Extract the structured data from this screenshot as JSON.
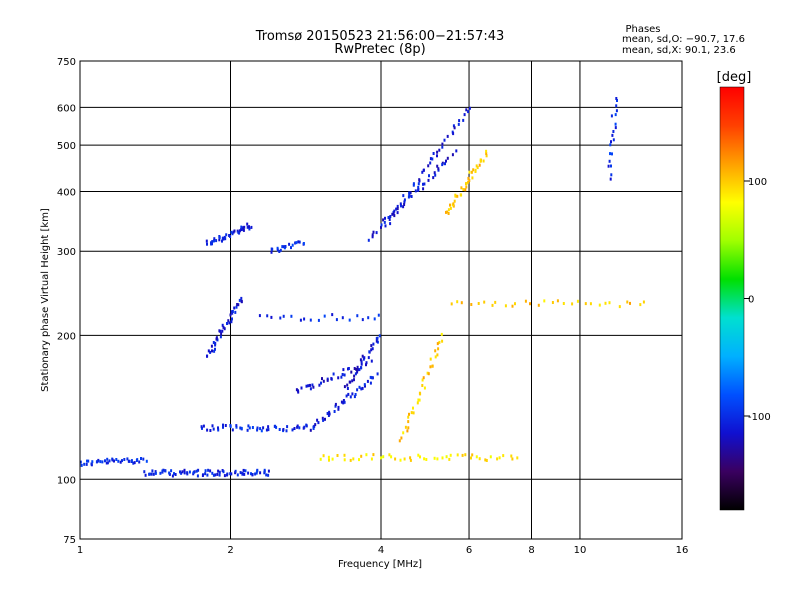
{
  "chart_data": {
    "type": "scatter",
    "title": "Tromsø 20150523 21:56:00−21:57:43",
    "subtitle": "RwPretec (8p)",
    "xlabel": "Frequency [MHz]",
    "ylabel": "Stationary phase Virtual Height [km]",
    "x_scale": "log",
    "y_scale": "log",
    "xlim": [
      1,
      16
    ],
    "ylim": [
      75,
      750
    ],
    "x_ticks": [
      1,
      2,
      4,
      6,
      8,
      10,
      16
    ],
    "y_ticks": [
      75,
      100,
      200,
      300,
      400,
      500,
      600,
      750
    ],
    "grid": true,
    "phases_box": {
      "heading": "Phases",
      "line_o": "mean, sd,O: −90.7, 17.6",
      "line_x": "mean, sd,X:  90.1, 23.6"
    },
    "colorbar": {
      "label": "[deg]",
      "range": [
        -180,
        180
      ],
      "ticks": [
        100,
        0,
        -100
      ],
      "colors": [
        "#000000",
        "#3a0060",
        "#1010d0",
        "#0050ff",
        "#00b0ff",
        "#00e0d0",
        "#00e000",
        "#a0ff00",
        "#ffff00",
        "#ffa000",
        "#ff4000",
        "#ff0000"
      ]
    },
    "series": [
      {
        "kind": "trace",
        "frequency_mhz": [
          1.0,
          1.35
        ],
        "height_km": [
          108,
          110
        ],
        "phase": -100,
        "density": 40
      },
      {
        "kind": "trace",
        "frequency_mhz": [
          1.35,
          2.4
        ],
        "height_km": [
          103,
          103
        ],
        "phase": -105,
        "density": 80
      },
      {
        "kind": "trace",
        "frequency_mhz": [
          1.75,
          2.9
        ],
        "height_km": [
          128,
          128
        ],
        "phase": -100,
        "density": 50
      },
      {
        "kind": "trace",
        "frequency_mhz": [
          2.9,
          3.9
        ],
        "height_km": [
          128,
          165
        ],
        "phase": -110,
        "density": 40
      },
      {
        "kind": "trace",
        "frequency_mhz": [
          2.7,
          3.8
        ],
        "height_km": [
          152,
          175
        ],
        "phase": -115,
        "density": 35
      },
      {
        "kind": "trace",
        "frequency_mhz": [
          3.4,
          4.0
        ],
        "height_km": [
          155,
          200
        ],
        "phase": -110,
        "density": 30
      },
      {
        "kind": "trace",
        "frequency_mhz": [
          1.8,
          2.1
        ],
        "height_km": [
          180,
          240
        ],
        "phase": -110,
        "density": 40
      },
      {
        "kind": "trace",
        "frequency_mhz": [
          1.8,
          2.2
        ],
        "height_km": [
          310,
          340
        ],
        "phase": -105,
        "density": 40
      },
      {
        "kind": "trace",
        "frequency_mhz": [
          2.4,
          2.8
        ],
        "height_km": [
          300,
          315
        ],
        "phase": -100,
        "density": 20
      },
      {
        "kind": "trace",
        "frequency_mhz": [
          3.8,
          5.6
        ],
        "height_km": [
          320,
          480
        ],
        "phase": -110,
        "density": 45
      },
      {
        "kind": "trace",
        "frequency_mhz": [
          4.1,
          6.0
        ],
        "height_km": [
          340,
          600
        ],
        "phase": -110,
        "density": 45
      },
      {
        "kind": "trace",
        "frequency_mhz": [
          5.4,
          6.5
        ],
        "height_km": [
          360,
          480
        ],
        "phase": 100,
        "density": 40
      },
      {
        "kind": "trace",
        "frequency_mhz": [
          4.4,
          5.3
        ],
        "height_km": [
          120,
          200
        ],
        "phase": 100,
        "density": 35
      },
      {
        "kind": "trace",
        "frequency_mhz": [
          3.0,
          7.5
        ],
        "height_km": [
          111,
          111
        ],
        "phase": 90,
        "density": 50
      },
      {
        "kind": "trace",
        "frequency_mhz": [
          2.3,
          4.0
        ],
        "height_km": [
          218,
          218
        ],
        "phase": -100,
        "density": 20
      },
      {
        "kind": "trace",
        "frequency_mhz": [
          5.5,
          13.5
        ],
        "height_km": [
          233,
          233
        ],
        "phase": 100,
        "density": 30
      },
      {
        "kind": "trace",
        "frequency_mhz": [
          11.5,
          11.8
        ],
        "height_km": [
          430,
          630
        ],
        "phase": -100,
        "density": 20
      }
    ]
  }
}
